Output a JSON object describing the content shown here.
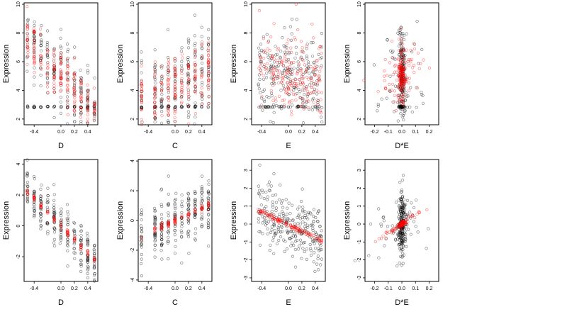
{
  "figure": {
    "background": "#ffffff",
    "point_colors": {
      "observed": "#000000",
      "fitted": "#ff0000"
    }
  },
  "chart_data": [
    {
      "id": "p1",
      "type": "scatter",
      "xlabel": "D",
      "ylabel": "Expression",
      "xlim": [
        -0.55,
        0.55
      ],
      "ylim": [
        1.6,
        10.1
      ],
      "xticks": [
        {
          "v": -0.4,
          "label": "-0.4"
        },
        {
          "v": 0.0,
          "label": "0.0"
        },
        {
          "v": 0.2,
          "label": "0.2"
        },
        {
          "v": 0.4,
          "label": "0.4"
        }
      ],
      "yticks": [
        {
          "v": 2,
          "label": "2"
        },
        {
          "v": 4,
          "label": "4"
        },
        {
          "v": 6,
          "label": "6"
        },
        {
          "v": 8,
          "label": "8"
        },
        {
          "v": 10,
          "label": "10"
        }
      ],
      "gen": {
        "mode": "line",
        "xmin": -0.5,
        "xmax": 0.5,
        "xgroups": [
          -0.5,
          -0.4,
          -0.3,
          -0.2,
          -0.1,
          0.0,
          0.1,
          0.2,
          0.3,
          0.4,
          0.5
        ],
        "slope": -5.0,
        "intercept": 5.0,
        "noise": 1.3,
        "floor": 2.85,
        "nblack": 260,
        "nred": 200,
        "rednoise": 1.0
      }
    },
    {
      "id": "p2",
      "type": "scatter",
      "xlabel": "C",
      "ylabel": "Expression",
      "xlim": [
        -0.55,
        0.55
      ],
      "ylim": [
        1.6,
        10.1
      ],
      "xticks": [
        {
          "v": -0.4,
          "label": "-0.4"
        },
        {
          "v": 0.0,
          "label": "0.0"
        },
        {
          "v": 0.2,
          "label": "0.2"
        },
        {
          "v": 0.4,
          "label": "0.4"
        }
      ],
      "yticks": [
        {
          "v": 2,
          "label": "2"
        },
        {
          "v": 4,
          "label": "4"
        },
        {
          "v": 6,
          "label": "6"
        },
        {
          "v": 8,
          "label": "8"
        },
        {
          "v": 10,
          "label": "10"
        }
      ],
      "gen": {
        "mode": "line",
        "xmin": -0.5,
        "xmax": 0.5,
        "xgroups": [
          -0.5,
          -0.3,
          -0.2,
          -0.1,
          0.0,
          0.1,
          0.2,
          0.3,
          0.4,
          0.5
        ],
        "slope": 2.5,
        "intercept": 4.3,
        "noise": 1.5,
        "floor": 2.85,
        "nblack": 260,
        "nred": 200,
        "rednoise": 1.2
      }
    },
    {
      "id": "p3",
      "type": "scatter",
      "xlabel": "E",
      "ylabel": "Expression",
      "xlim": [
        -0.55,
        0.55
      ],
      "ylim": [
        1.6,
        10.1
      ],
      "xticks": [
        {
          "v": -0.4,
          "label": "-0.4"
        },
        {
          "v": 0.0,
          "label": "0.0"
        },
        {
          "v": 0.2,
          "label": "0.2"
        },
        {
          "v": 0.4,
          "label": "0.4"
        }
      ],
      "yticks": [
        {
          "v": 2,
          "label": "2"
        },
        {
          "v": 4,
          "label": "4"
        },
        {
          "v": 6,
          "label": "6"
        },
        {
          "v": 8,
          "label": "8"
        },
        {
          "v": 10,
          "label": "10"
        }
      ],
      "gen": {
        "mode": "line",
        "xmin": -0.45,
        "xmax": 0.5,
        "xgroups": [],
        "slope": -1.2,
        "intercept": 5.2,
        "noise": 1.5,
        "floor": 2.85,
        "nblack": 260,
        "nred": 200,
        "rednoise": 1.3
      }
    },
    {
      "id": "p4",
      "type": "scatter",
      "xlabel": "D*E",
      "ylabel": "Expression",
      "xlim": [
        -0.27,
        0.27
      ],
      "ylim": [
        1.6,
        10.1
      ],
      "xticks": [
        {
          "v": -0.2,
          "label": "-0.2"
        },
        {
          "v": -0.1,
          "label": "-0.1"
        },
        {
          "v": 0.0,
          "label": "0.0"
        },
        {
          "v": 0.1,
          "label": "0.1"
        },
        {
          "v": 0.2,
          "label": "0.2"
        }
      ],
      "yticks": [
        {
          "v": 2,
          "label": "2"
        },
        {
          "v": 4,
          "label": "4"
        },
        {
          "v": 6,
          "label": "6"
        },
        {
          "v": 8,
          "label": "8"
        },
        {
          "v": 10,
          "label": "10"
        }
      ],
      "gen": {
        "mode": "interaction",
        "xmin": -0.25,
        "xmax": 0.25,
        "xgroups": [],
        "slope": 3.0,
        "intercept": 5.0,
        "noise": 1.5,
        "floor": 2.85,
        "nblack": 260,
        "nred": 200,
        "rednoise": 1.0
      }
    },
    {
      "id": "p5",
      "type": "scatter",
      "xlabel": "D",
      "ylabel": "Expression",
      "xlim": [
        -0.55,
        0.55
      ],
      "ylim": [
        -3.6,
        4.3
      ],
      "xticks": [
        {
          "v": -0.4,
          "label": "-0.4"
        },
        {
          "v": 0.0,
          "label": "0.0"
        },
        {
          "v": 0.2,
          "label": "0.2"
        },
        {
          "v": 0.4,
          "label": "0.4"
        }
      ],
      "yticks": [
        {
          "v": -2,
          "label": "-2"
        },
        {
          "v": 0,
          "label": "0"
        },
        {
          "v": 2,
          "label": "2"
        },
        {
          "v": 4,
          "label": "4"
        }
      ],
      "gen": {
        "mode": "line",
        "xmin": -0.5,
        "xmax": 0.5,
        "xgroups": [
          -0.5,
          -0.4,
          -0.3,
          -0.2,
          -0.1,
          0.0,
          0.1,
          0.2,
          0.3,
          0.4,
          0.5
        ],
        "slope": -4.4,
        "intercept": 0.0,
        "noise": 0.85,
        "floor": null,
        "nblack": 260,
        "nred": 90,
        "rednoise": 0.12
      }
    },
    {
      "id": "p6",
      "type": "scatter",
      "xlabel": "C",
      "ylabel": "Expression",
      "xlim": [
        -0.55,
        0.55
      ],
      "ylim": [
        -4.1,
        4.1
      ],
      "xticks": [
        {
          "v": -0.4,
          "label": "-0.4"
        },
        {
          "v": 0.0,
          "label": "0.0"
        },
        {
          "v": 0.2,
          "label": "0.2"
        },
        {
          "v": 0.4,
          "label": "0.4"
        }
      ],
      "yticks": [
        {
          "v": -4,
          "label": "-4"
        },
        {
          "v": -2,
          "label": "-2"
        },
        {
          "v": 0,
          "label": "0"
        },
        {
          "v": 2,
          "label": "2"
        },
        {
          "v": 4,
          "label": "4"
        }
      ],
      "gen": {
        "mode": "line",
        "xmin": -0.5,
        "xmax": 0.5,
        "xgroups": [
          -0.5,
          -0.3,
          -0.2,
          -0.1,
          0.0,
          0.1,
          0.2,
          0.3,
          0.4,
          0.5
        ],
        "slope": 2.1,
        "intercept": 0.0,
        "noise": 0.95,
        "floor": null,
        "nblack": 260,
        "nred": 90,
        "rednoise": 0.12
      }
    },
    {
      "id": "p7",
      "type": "scatter",
      "xlabel": "E",
      "ylabel": "Expression",
      "xlim": [
        -0.55,
        0.55
      ],
      "ylim": [
        -3.2,
        3.6
      ],
      "xticks": [
        {
          "v": -0.4,
          "label": "-0.4"
        },
        {
          "v": 0.0,
          "label": "0.0"
        },
        {
          "v": 0.2,
          "label": "0.2"
        },
        {
          "v": 0.4,
          "label": "0.4"
        }
      ],
      "yticks": [
        {
          "v": -3,
          "label": "-3"
        },
        {
          "v": -2,
          "label": "-2"
        },
        {
          "v": -1,
          "label": "-1"
        },
        {
          "v": 0,
          "label": "0"
        },
        {
          "v": 1,
          "label": "1"
        },
        {
          "v": 2,
          "label": "2"
        },
        {
          "v": 3,
          "label": "3"
        }
      ],
      "gen": {
        "mode": "line",
        "xmin": -0.45,
        "xmax": 0.5,
        "xgroups": [],
        "slope": -1.8,
        "intercept": -0.05,
        "noise": 0.9,
        "floor": null,
        "nblack": 260,
        "nred": 120,
        "rednoise": 0.07
      }
    },
    {
      "id": "p8",
      "type": "scatter",
      "xlabel": "D*E",
      "ylabel": "Expression",
      "xlim": [
        -0.27,
        0.27
      ],
      "ylim": [
        -3.2,
        3.6
      ],
      "xticks": [
        {
          "v": -0.2,
          "label": "-0.2"
        },
        {
          "v": -0.1,
          "label": "-0.1"
        },
        {
          "v": 0.0,
          "label": "0.0"
        },
        {
          "v": 0.1,
          "label": "0.1"
        },
        {
          "v": 0.2,
          "label": "0.2"
        }
      ],
      "yticks": [
        {
          "v": -3,
          "label": "-3"
        },
        {
          "v": -2,
          "label": "-2"
        },
        {
          "v": -1,
          "label": "-1"
        },
        {
          "v": 0,
          "label": "0"
        },
        {
          "v": 1,
          "label": "1"
        },
        {
          "v": 2,
          "label": "2"
        },
        {
          "v": 3,
          "label": "3"
        }
      ],
      "gen": {
        "mode": "interaction",
        "xmin": -0.25,
        "xmax": 0.25,
        "xgroups": [],
        "slope": 5.0,
        "intercept": 0.0,
        "noise": 0.9,
        "floor": null,
        "nblack": 260,
        "nred": 110,
        "rednoise": 0.08
      }
    }
  ]
}
